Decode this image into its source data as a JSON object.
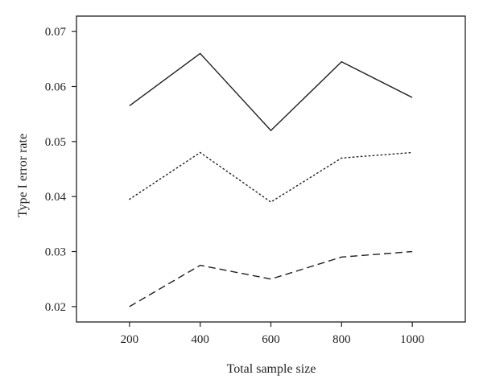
{
  "chart_data": {
    "type": "line",
    "title": "",
    "xlabel": "Total sample size",
    "ylabel": "Type I error rate",
    "x": [
      200,
      400,
      600,
      800,
      1000
    ],
    "xlim": [
      50,
      1150
    ],
    "ylim": [
      0.0172,
      0.0728
    ],
    "xticks": [
      "200",
      "400",
      "600",
      "800",
      "1000"
    ],
    "yticks": [
      "0.02",
      "0.03",
      "0.04",
      "0.05",
      "0.06",
      "0.07"
    ],
    "grid": false,
    "legend": "none",
    "series": [
      {
        "style": "solid",
        "values": [
          0.0565,
          0.066,
          0.052,
          0.0645,
          0.058
        ]
      },
      {
        "style": "dotted",
        "values": [
          0.0395,
          0.048,
          0.039,
          0.047,
          0.048
        ]
      },
      {
        "style": "dashed",
        "values": [
          0.02,
          0.0275,
          0.025,
          0.029,
          0.03
        ]
      }
    ]
  }
}
